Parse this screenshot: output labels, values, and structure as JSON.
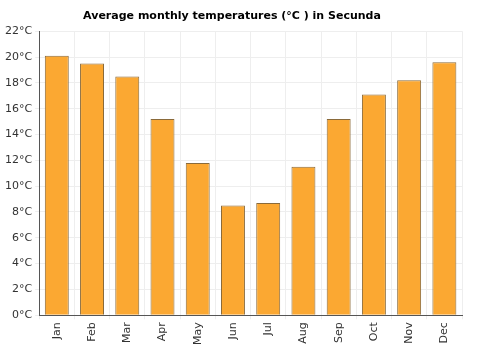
{
  "chart_data": {
    "type": "bar",
    "title": "Average monthly temperatures (°C ) in Secunda",
    "categories": [
      "Jan",
      "Feb",
      "Mar",
      "Apr",
      "May",
      "Jun",
      "Jul",
      "Aug",
      "Sep",
      "Oct",
      "Nov",
      "Dec"
    ],
    "values": [
      20.1,
      19.5,
      18.5,
      15.2,
      11.8,
      8.5,
      8.7,
      11.5,
      15.2,
      17.1,
      18.2,
      19.6
    ],
    "color": "#fba832",
    "ylim": [
      0,
      22
    ],
    "yticks": [
      {
        "value": 0,
        "label": "0°C"
      },
      {
        "value": 2,
        "label": "2°C"
      },
      {
        "value": 4,
        "label": "4°C"
      },
      {
        "value": 6,
        "label": "6°C"
      },
      {
        "value": 8,
        "label": "8°C"
      },
      {
        "value": 10,
        "label": "10°C"
      },
      {
        "value": 12,
        "label": "12°C"
      },
      {
        "value": 14,
        "label": "14°C"
      },
      {
        "value": 16,
        "label": "16°C"
      },
      {
        "value": 18,
        "label": "18°C"
      },
      {
        "value": 20,
        "label": "20°C"
      },
      {
        "value": 22,
        "label": "22°C"
      }
    ],
    "grid": true
  }
}
